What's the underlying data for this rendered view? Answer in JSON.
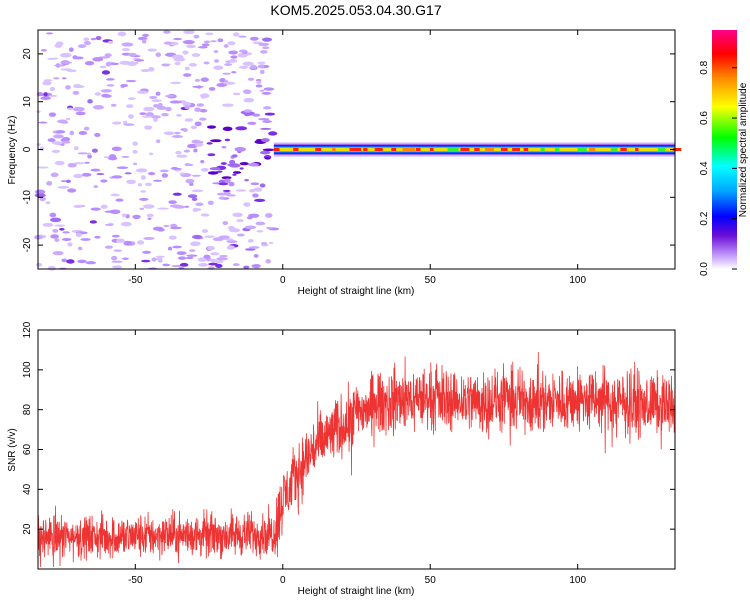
{
  "title": "KOM5.2025.053.04.30.G17",
  "chart_data": [
    {
      "type": "heatmap",
      "xlabel": "Height of straight line (km)",
      "ylabel": "Frequency (Hz)",
      "xlim": [
        -83,
        133
      ],
      "ylim": [
        -25,
        25
      ],
      "xticks": [
        -50,
        0,
        50,
        100
      ],
      "yticks": [
        -20,
        -10,
        0,
        10,
        20
      ],
      "colorbar": {
        "label": "Normalized spectral amplitude",
        "range": [
          0,
          0.95
        ],
        "ticks": [
          0.0,
          0.2,
          0.4,
          0.6,
          0.8
        ]
      },
      "signal_band": {
        "x_start": -3,
        "x_end": 133,
        "frequency_hz": 0
      },
      "noise_region": {
        "x_start": -83,
        "x_end": -3
      }
    },
    {
      "type": "line",
      "xlabel": "Height of straight line (km)",
      "ylabel": "SNR (v/v)",
      "xlim": [
        -83,
        133
      ],
      "ylim": [
        0,
        120
      ],
      "xticks": [
        -50,
        0,
        50,
        100
      ],
      "yticks": [
        20,
        40,
        60,
        80,
        100,
        120
      ],
      "color": "#ee3333",
      "grid": false,
      "series": [
        {
          "x": [
            -80,
            -60,
            -40,
            -20,
            -3,
            0,
            5,
            10,
            15,
            20,
            25,
            30,
            40,
            50,
            60,
            70,
            80,
            90,
            100,
            110,
            120,
            130
          ],
          "y": [
            16,
            16,
            17,
            17,
            18,
            35,
            48,
            60,
            66,
            72,
            78,
            82,
            85,
            86,
            85,
            84,
            85,
            84,
            85,
            84,
            83,
            82
          ]
        }
      ]
    }
  ]
}
